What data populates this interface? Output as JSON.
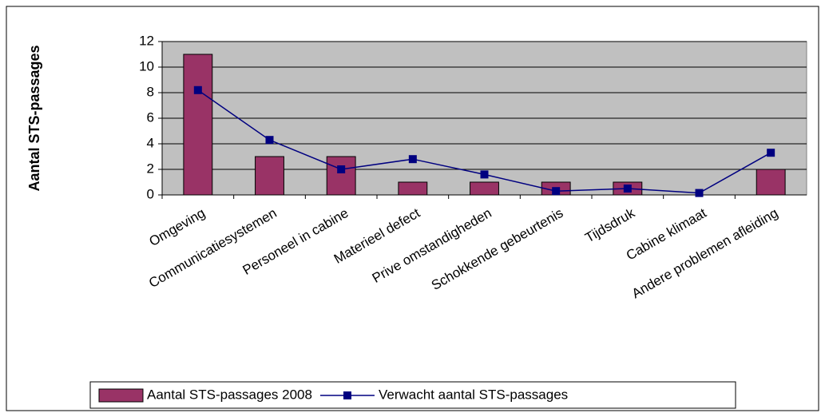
{
  "chart_data": {
    "type": "bar",
    "ylabel": "Aantal STS-passages",
    "categories": [
      "Omgeving",
      "Communicatiesystemen",
      "Personeel in cabine",
      "Materieel defect",
      "Prive omstandigheden",
      "Schokkende gebeurtenis",
      "Tijdsdruk",
      "Cabine klimaat",
      "Andere problemen afleiding"
    ],
    "series": [
      {
        "name": "Aantal STS-passages 2008",
        "type": "bar",
        "color": "#993366",
        "values": [
          11,
          3,
          3,
          1,
          1,
          1,
          1,
          0,
          2
        ]
      },
      {
        "name": "Verwacht aantal STS-passages",
        "type": "line",
        "color": "#000080",
        "values": [
          8.2,
          4.3,
          2.0,
          2.8,
          1.6,
          0.3,
          0.5,
          0.15,
          3.3
        ]
      }
    ],
    "ylim": [
      0,
      12
    ],
    "yticks": [
      0,
      2,
      4,
      6,
      8,
      10,
      12
    ],
    "grid": true,
    "legend": "bottom"
  }
}
